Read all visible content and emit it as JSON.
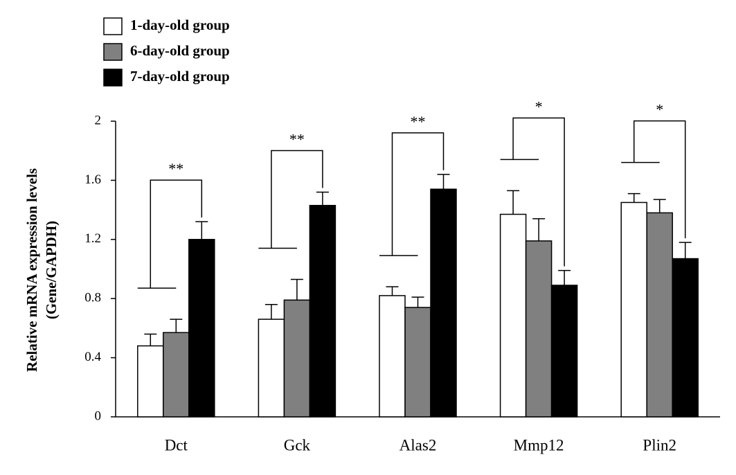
{
  "chart_data": {
    "type": "bar",
    "y_label": [
      "Relative mRNA expression levels",
      "(Gene/GAPDH)"
    ],
    "categories": [
      "Dct",
      "Gck",
      "Alas2",
      "Mmp12",
      "Plin2"
    ],
    "series": [
      {
        "name": "1-day-old group",
        "color": "#ffffff",
        "values": [
          0.48,
          0.66,
          0.82,
          1.37,
          1.45
        ],
        "errors": [
          0.08,
          0.1,
          0.06,
          0.16,
          0.06
        ]
      },
      {
        "name": "6-day-old group",
        "color": "#808080",
        "values": [
          0.57,
          0.79,
          0.74,
          1.19,
          1.38
        ],
        "errors": [
          0.09,
          0.14,
          0.07,
          0.15,
          0.09
        ]
      },
      {
        "name": "7-day-old group",
        "color": "#000000",
        "values": [
          1.2,
          1.43,
          1.54,
          0.89,
          1.07
        ],
        "errors": [
          0.12,
          0.09,
          0.1,
          0.1,
          0.11
        ]
      }
    ],
    "significance": [
      "**",
      "**",
      "**",
      "*",
      "*"
    ],
    "ylim": [
      0,
      2
    ],
    "yticks": [
      0,
      0.4,
      0.8,
      1.2,
      1.6,
      2
    ],
    "grid": false
  }
}
